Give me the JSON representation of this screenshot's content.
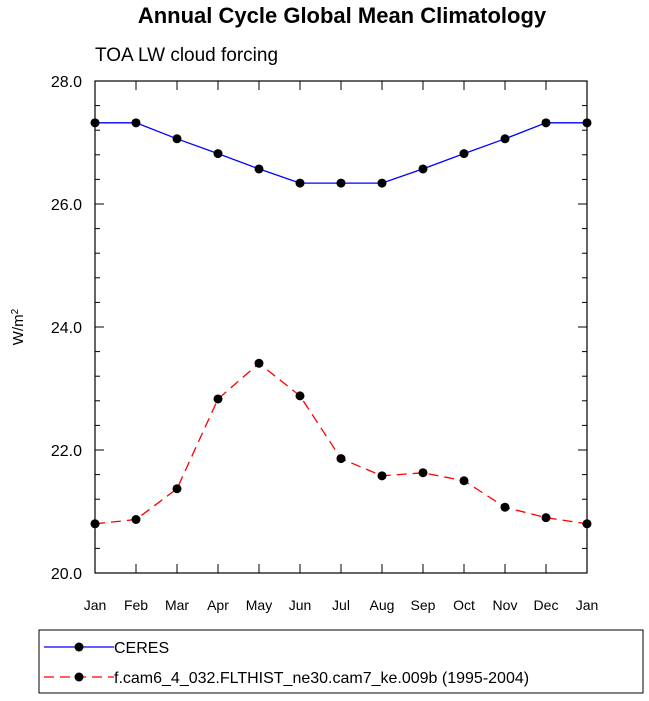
{
  "chart_data": {
    "type": "line",
    "title": "Annual Cycle Global Mean Climatology",
    "subtitle": "TOA LW cloud forcing",
    "xlabel": "",
    "ylabel": "W/m",
    "ylabel_superscript": "2",
    "categories": [
      "Jan",
      "Feb",
      "Mar",
      "Apr",
      "May",
      "Jun",
      "Jul",
      "Aug",
      "Sep",
      "Oct",
      "Nov",
      "Dec",
      "Jan"
    ],
    "ylim": [
      20.0,
      28.0
    ],
    "y_major_ticks": [
      20.0,
      22.0,
      24.0,
      26.0,
      28.0
    ],
    "y_major_tick_labels": [
      "20.0",
      "22.0",
      "24.0",
      "26.0",
      "28.0"
    ],
    "y_minor_step": 0.4,
    "grid": false,
    "legend_position": "bottom",
    "series": [
      {
        "name": "CERES",
        "color": "#0000ff",
        "dash": "solid",
        "values": [
          27.32,
          27.32,
          27.06,
          26.82,
          26.57,
          26.34,
          26.34,
          26.34,
          26.57,
          26.82,
          27.06,
          27.32,
          27.32
        ]
      },
      {
        "name": "f.cam6_4_032.FLTHIST_ne30.cam7_ke.009b (1995-2004)",
        "color": "#ff0000",
        "dash": "dashed",
        "values": [
          20.8,
          20.87,
          21.37,
          22.83,
          23.41,
          22.88,
          21.86,
          21.58,
          21.63,
          21.5,
          21.07,
          20.9,
          20.8
        ]
      }
    ]
  }
}
